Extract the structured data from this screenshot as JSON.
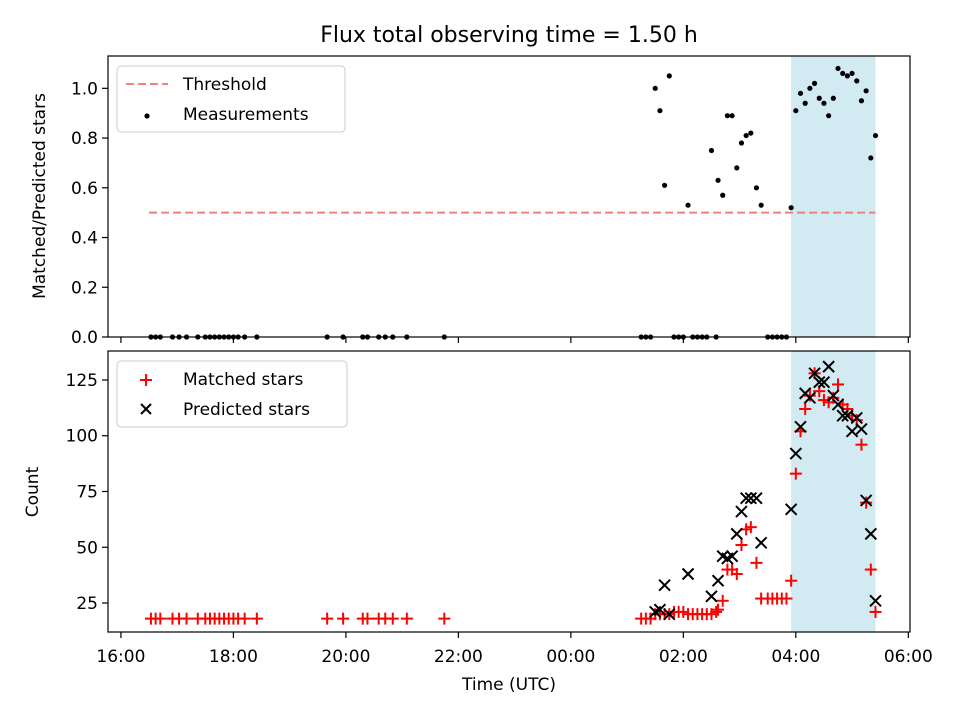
{
  "chart_data": [
    {
      "type": "scatter",
      "title": "Flux total observing time = 1.50 h",
      "ylabel": "Matched/Predicted stars",
      "xlabel": "",
      "ylim": [
        0,
        1.13
      ],
      "y_ticks": [
        "0.0",
        "0.2",
        "0.4",
        "0.6",
        "0.8",
        "1.0"
      ],
      "legend_position": "upper-left",
      "legend": [
        {
          "label": "Threshold",
          "style": "dashed-line",
          "color": "#f08080"
        },
        {
          "label": "Measurements",
          "style": "dot",
          "color": "#000000"
        }
      ],
      "threshold": {
        "value": 0.5,
        "x_start": "16:30",
        "x_end": "05:25",
        "color": "#f08080"
      },
      "highlight_span": {
        "start": "03:55",
        "end": "05:25",
        "color": "#add8e6"
      },
      "series": [
        {
          "name": "Measurements",
          "color": "#000000",
          "points": [
            [
              "16:32",
              0
            ],
            [
              "16:37",
              0
            ],
            [
              "16:42",
              0
            ],
            [
              "16:55",
              0
            ],
            [
              "17:02",
              0
            ],
            [
              "17:10",
              0
            ],
            [
              "17:22",
              0
            ],
            [
              "17:30",
              0
            ],
            [
              "17:35",
              0
            ],
            [
              "17:40",
              0
            ],
            [
              "17:45",
              0
            ],
            [
              "17:50",
              0
            ],
            [
              "17:55",
              0
            ],
            [
              "18:00",
              0
            ],
            [
              "18:05",
              0
            ],
            [
              "18:12",
              0
            ],
            [
              "18:25",
              0
            ],
            [
              "19:40",
              0
            ],
            [
              "19:57",
              0
            ],
            [
              "20:18",
              0
            ],
            [
              "20:23",
              0
            ],
            [
              "20:35",
              0
            ],
            [
              "20:42",
              0
            ],
            [
              "20:50",
              0
            ],
            [
              "21:05",
              0
            ],
            [
              "21:45",
              0
            ],
            [
              "01:15",
              0
            ],
            [
              "01:20",
              0
            ],
            [
              "01:25",
              0
            ],
            [
              "01:30",
              1.0
            ],
            [
              "01:35",
              0.91
            ],
            [
              "01:40",
              0.61
            ],
            [
              "01:45",
              1.05
            ],
            [
              "01:50",
              0
            ],
            [
              "01:55",
              0
            ],
            [
              "02:00",
              0
            ],
            [
              "02:05",
              0.53
            ],
            [
              "02:10",
              0
            ],
            [
              "02:15",
              0
            ],
            [
              "02:20",
              0
            ],
            [
              "02:25",
              0
            ],
            [
              "02:30",
              0.75
            ],
            [
              "02:35",
              0
            ],
            [
              "02:37",
              0.63
            ],
            [
              "02:42",
              0.57
            ],
            [
              "02:47",
              0.89
            ],
            [
              "02:52",
              0.89
            ],
            [
              "02:57",
              0.68
            ],
            [
              "03:02",
              0.78
            ],
            [
              "03:07",
              0.81
            ],
            [
              "03:12",
              0.82
            ],
            [
              "03:18",
              0.6
            ],
            [
              "03:23",
              0.53
            ],
            [
              "03:30",
              0
            ],
            [
              "03:35",
              0
            ],
            [
              "03:40",
              0
            ],
            [
              "03:45",
              0
            ],
            [
              "03:50",
              0
            ],
            [
              "03:55",
              0.52
            ],
            [
              "04:00",
              0.91
            ],
            [
              "04:05",
              0.98
            ],
            [
              "04:10",
              0.94
            ],
            [
              "04:15",
              1.0
            ],
            [
              "04:20",
              1.02
            ],
            [
              "04:25",
              0.96
            ],
            [
              "04:30",
              0.94
            ],
            [
              "04:35",
              0.89
            ],
            [
              "04:40",
              0.96
            ],
            [
              "04:45",
              1.08
            ],
            [
              "04:50",
              1.06
            ],
            [
              "04:55",
              1.05
            ],
            [
              "05:00",
              1.06
            ],
            [
              "05:05",
              1.03
            ],
            [
              "05:10",
              0.95
            ],
            [
              "05:15",
              0.99
            ],
            [
              "05:20",
              0.72
            ],
            [
              "05:25",
              0.81
            ]
          ]
        }
      ]
    },
    {
      "type": "scatter",
      "title": "",
      "ylabel": "Count",
      "xlabel": "Time (UTC)",
      "ylim": [
        12,
        138
      ],
      "y_ticks": [
        "25",
        "50",
        "75",
        "100",
        "125"
      ],
      "x_ticks": [
        "16:00",
        "18:00",
        "20:00",
        "22:00",
        "00:00",
        "02:00",
        "04:00",
        "06:00"
      ],
      "legend_position": "upper-left",
      "legend": [
        {
          "label": "Matched stars",
          "style": "plus",
          "color": "#ff0000"
        },
        {
          "label": "Predicted stars",
          "style": "x",
          "color": "#000000"
        }
      ],
      "highlight_span": {
        "start": "03:55",
        "end": "05:25",
        "color": "#add8e6"
      },
      "series": [
        {
          "name": "Matched stars",
          "color": "#ff0000",
          "marker": "plus",
          "points": [
            [
              "16:32",
              18
            ],
            [
              "16:37",
              18
            ],
            [
              "16:42",
              18
            ],
            [
              "16:55",
              18
            ],
            [
              "17:02",
              18
            ],
            [
              "17:10",
              18
            ],
            [
              "17:22",
              18
            ],
            [
              "17:30",
              18
            ],
            [
              "17:35",
              18
            ],
            [
              "17:40",
              18
            ],
            [
              "17:45",
              18
            ],
            [
              "17:50",
              18
            ],
            [
              "17:55",
              18
            ],
            [
              "18:00",
              18
            ],
            [
              "18:05",
              18
            ],
            [
              "18:12",
              18
            ],
            [
              "18:25",
              18
            ],
            [
              "19:40",
              18
            ],
            [
              "19:57",
              18
            ],
            [
              "20:18",
              18
            ],
            [
              "20:23",
              18
            ],
            [
              "20:35",
              18
            ],
            [
              "20:42",
              18
            ],
            [
              "20:50",
              18
            ],
            [
              "21:05",
              18
            ],
            [
              "21:45",
              18
            ],
            [
              "01:15",
              18
            ],
            [
              "01:20",
              18
            ],
            [
              "01:25",
              18
            ],
            [
              "01:30",
              20
            ],
            [
              "01:35",
              20
            ],
            [
              "01:40",
              20
            ],
            [
              "01:45",
              20
            ],
            [
              "01:50",
              21
            ],
            [
              "01:55",
              21
            ],
            [
              "02:00",
              21
            ],
            [
              "02:05",
              20
            ],
            [
              "02:10",
              20
            ],
            [
              "02:15",
              20
            ],
            [
              "02:20",
              20
            ],
            [
              "02:25",
              20
            ],
            [
              "02:30",
              20
            ],
            [
              "02:35",
              21
            ],
            [
              "02:37",
              22
            ],
            [
              "02:42",
              26
            ],
            [
              "02:47",
              40
            ],
            [
              "02:52",
              40
            ],
            [
              "02:57",
              38
            ],
            [
              "03:02",
              51
            ],
            [
              "03:07",
              58
            ],
            [
              "03:12",
              59
            ],
            [
              "03:18",
              43
            ],
            [
              "03:23",
              27
            ],
            [
              "03:30",
              27
            ],
            [
              "03:35",
              27
            ],
            [
              "03:40",
              27
            ],
            [
              "03:45",
              27
            ],
            [
              "03:50",
              27
            ],
            [
              "03:55",
              35
            ],
            [
              "04:00",
              83
            ],
            [
              "04:05",
              102
            ],
            [
              "04:10",
              112
            ],
            [
              "04:15",
              118
            ],
            [
              "04:20",
              128
            ],
            [
              "04:25",
              120
            ],
            [
              "04:30",
              116
            ],
            [
              "04:35",
              115
            ],
            [
              "04:40",
              117
            ],
            [
              "04:45",
              123
            ],
            [
              "04:50",
              114
            ],
            [
              "04:55",
              112
            ],
            [
              "05:00",
              109
            ],
            [
              "05:05",
              107
            ],
            [
              "05:10",
              96
            ],
            [
              "05:15",
              70
            ],
            [
              "05:20",
              40
            ],
            [
              "05:25",
              21
            ]
          ]
        },
        {
          "name": "Predicted stars",
          "color": "#000000",
          "marker": "x",
          "points": [
            [
              "01:30",
              21
            ],
            [
              "01:35",
              22
            ],
            [
              "01:40",
              33
            ],
            [
              "01:45",
              20
            ],
            [
              "02:05",
              38
            ],
            [
              "02:30",
              28
            ],
            [
              "02:37",
              35
            ],
            [
              "02:42",
              46
            ],
            [
              "02:47",
              45
            ],
            [
              "02:52",
              46
            ],
            [
              "02:57",
              56
            ],
            [
              "03:02",
              66
            ],
            [
              "03:07",
              72
            ],
            [
              "03:12",
              72
            ],
            [
              "03:18",
              72
            ],
            [
              "03:23",
              52
            ],
            [
              "03:55",
              67
            ],
            [
              "04:00",
              92
            ],
            [
              "04:05",
              104
            ],
            [
              "04:10",
              119
            ],
            [
              "04:15",
              117
            ],
            [
              "04:20",
              128
            ],
            [
              "04:25",
              124
            ],
            [
              "04:30",
              124
            ],
            [
              "04:35",
              131
            ],
            [
              "04:40",
              118
            ],
            [
              "04:45",
              114
            ],
            [
              "04:50",
              109
            ],
            [
              "04:55",
              109
            ],
            [
              "05:00",
              102
            ],
            [
              "05:05",
              108
            ],
            [
              "05:10",
              103
            ],
            [
              "05:15",
              71
            ],
            [
              "05:20",
              56
            ],
            [
              "05:25",
              26
            ]
          ]
        }
      ]
    }
  ]
}
